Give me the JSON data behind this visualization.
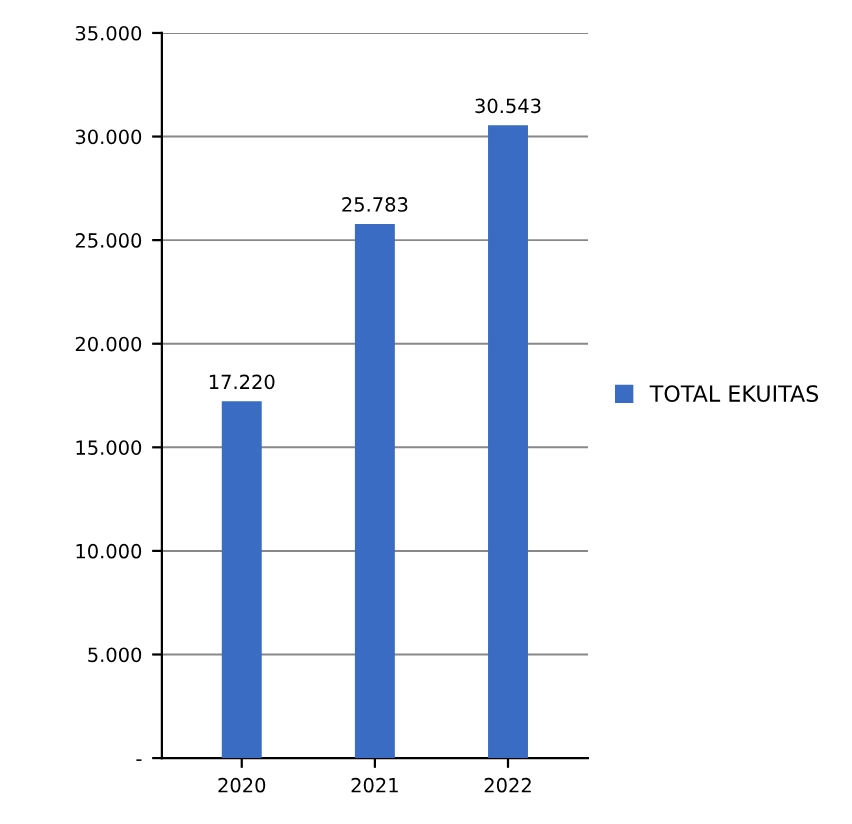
{
  "chart_data": {
    "type": "bar",
    "categories": [
      "2020",
      "2021",
      "2022"
    ],
    "series": [
      {
        "name": "TOTAL EKUITAS",
        "color": "#3b6cc4",
        "values": [
          17220,
          25783,
          30543
        ],
        "value_labels": [
          "17.220",
          "25.783",
          "30.543"
        ]
      }
    ],
    "ylim": [
      0,
      35000
    ],
    "yticks": [
      {
        "value": 0,
        "label": "-"
      },
      {
        "value": 5000,
        "label": "5.000"
      },
      {
        "value": 10000,
        "label": "10.000"
      },
      {
        "value": 15000,
        "label": "15.000"
      },
      {
        "value": 20000,
        "label": "20.000"
      },
      {
        "value": 25000,
        "label": "25.000"
      },
      {
        "value": 30000,
        "label": "30.000"
      },
      {
        "value": 35000,
        "label": "35.000"
      }
    ],
    "grid": "y",
    "legend": "right"
  }
}
